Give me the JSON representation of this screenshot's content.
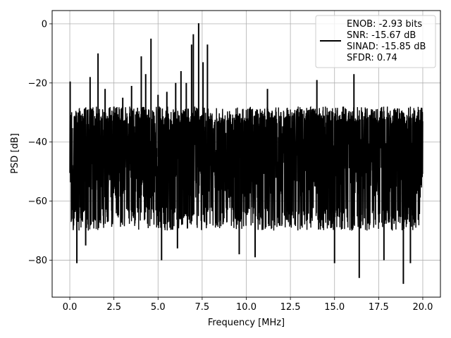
{
  "chart_data": {
    "type": "line",
    "title": "",
    "xlabel": "Frequency [MHz]",
    "ylabel": "PSD [dB]",
    "xlim": [
      -1.0,
      21.0
    ],
    "ylim": [
      -92.5,
      4.5
    ],
    "xticks": [
      0.0,
      2.5,
      5.0,
      7.5,
      10.0,
      12.5,
      15.0,
      17.5,
      20.0
    ],
    "xtick_labels": [
      "0.0",
      "2.5",
      "5.0",
      "7.5",
      "10.0",
      "12.5",
      "15.0",
      "17.5",
      "20.0"
    ],
    "yticks": [
      0,
      -20,
      -40,
      -60,
      -80
    ],
    "ytick_labels": [
      "0",
      "−20",
      "−40",
      "−60",
      "−80"
    ],
    "grid": true,
    "legend_position": "top-right",
    "series": [
      {
        "name": "ENOB: -2.93 bits\nSNR: -15.67 dB\nSINAD: -15.85 dB\nSFDR: 0.74",
        "color": "#000000",
        "x_range": [
          0.0,
          20.0
        ],
        "noise_band_upper_db": -28,
        "noise_band_lower_db": -70,
        "noise_floor_mean_db": -45,
        "spurs": [
          {
            "x": 0.02,
            "y": -19.5
          },
          {
            "x": 1.15,
            "y": -18.0
          },
          {
            "x": 1.6,
            "y": -10.0
          },
          {
            "x": 2.0,
            "y": -22.0
          },
          {
            "x": 2.5,
            "y": -28.0
          },
          {
            "x": 3.0,
            "y": -25.0
          },
          {
            "x": 3.5,
            "y": -21.0
          },
          {
            "x": 4.05,
            "y": -11.0
          },
          {
            "x": 4.3,
            "y": -17.0
          },
          {
            "x": 4.6,
            "y": -5.0
          },
          {
            "x": 5.0,
            "y": -24.0
          },
          {
            "x": 5.5,
            "y": -23.0
          },
          {
            "x": 6.0,
            "y": -20.0
          },
          {
            "x": 6.3,
            "y": -16.0
          },
          {
            "x": 6.6,
            "y": -20.0
          },
          {
            "x": 6.9,
            "y": -7.0
          },
          {
            "x": 7.0,
            "y": -3.5
          },
          {
            "x": 7.3,
            "y": 0.2
          },
          {
            "x": 7.55,
            "y": -13.0
          },
          {
            "x": 7.8,
            "y": -7.0
          },
          {
            "x": 11.2,
            "y": -22.0
          },
          {
            "x": 14.0,
            "y": -19.0
          },
          {
            "x": 16.1,
            "y": -17.0
          }
        ],
        "dips": [
          {
            "x": 0.4,
            "y": -81.0
          },
          {
            "x": 0.9,
            "y": -75.0
          },
          {
            "x": 5.2,
            "y": -80.0
          },
          {
            "x": 6.1,
            "y": -76.0
          },
          {
            "x": 9.6,
            "y": -78.0
          },
          {
            "x": 10.5,
            "y": -79.0
          },
          {
            "x": 15.0,
            "y": -81.0
          },
          {
            "x": 16.4,
            "y": -86.0
          },
          {
            "x": 17.8,
            "y": -80.0
          },
          {
            "x": 18.9,
            "y": -88.0
          },
          {
            "x": 19.3,
            "y": -81.0
          }
        ]
      }
    ]
  }
}
